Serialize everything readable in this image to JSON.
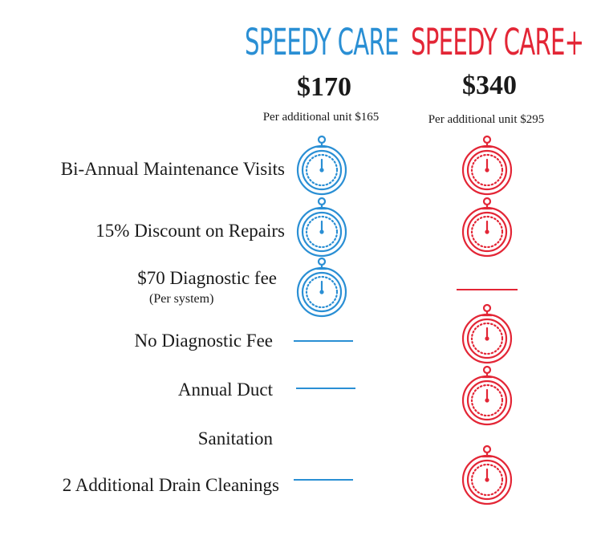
{
  "plans": [
    {
      "name": "SPEEDY CARE",
      "price": "$170",
      "additional": "Per additional unit $165",
      "color": "#2a8fd4"
    },
    {
      "name": "SPEEDY CARE+",
      "price": "$340",
      "additional": "Per additional unit $295",
      "color": "#e32636"
    }
  ],
  "features": [
    {
      "label": "Bi-Annual Maintenance Visits",
      "plan1": "stopwatch-icon",
      "plan2": "stopwatch-icon"
    },
    {
      "label": "15% Discount on Repairs",
      "plan1": "stopwatch-icon",
      "plan2": "stopwatch-icon"
    },
    {
      "label": "$70 Diagnostic fee",
      "sublabel": "(Per system)",
      "plan1": "stopwatch-icon",
      "plan2": "dash"
    },
    {
      "label": "No Diagnostic Fee",
      "plan1": "dash",
      "plan2": "stopwatch-icon"
    },
    {
      "label": "Annual Duct",
      "plan1": "dash",
      "plan2": "stopwatch-icon"
    },
    {
      "label": "Sanitation"
    },
    {
      "label": "2 Additional Drain Cleanings",
      "plan1": "dash",
      "plan2": "stopwatch-icon"
    }
  ]
}
